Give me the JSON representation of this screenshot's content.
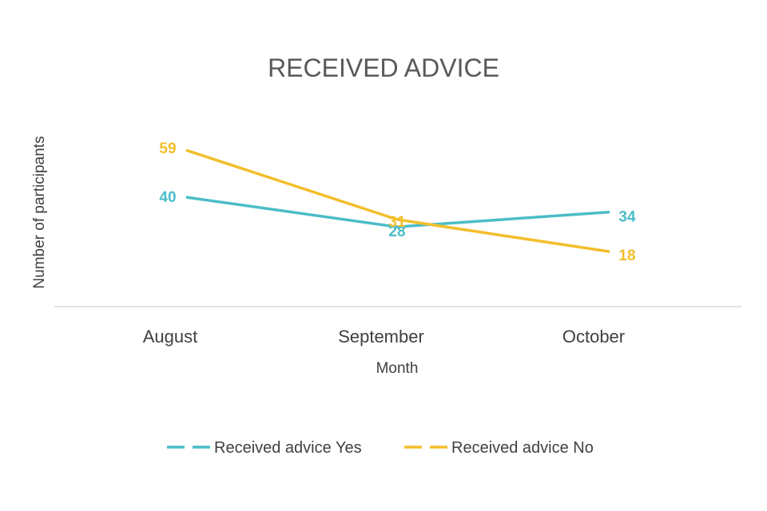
{
  "chart_data": {
    "type": "line",
    "title": "RECEIVED ADVICE",
    "xlabel": "Month",
    "ylabel": "Number of participants",
    "categories": [
      "August",
      "September",
      "October"
    ],
    "series": [
      {
        "name": "Received advice Yes",
        "values": [
          40,
          28,
          34
        ],
        "color": "#4bbdc8"
      },
      {
        "name": "Received advice No",
        "values": [
          59,
          31,
          18
        ],
        "color": "#f2be2c"
      }
    ],
    "legend_position": "bottom",
    "grid": false
  }
}
